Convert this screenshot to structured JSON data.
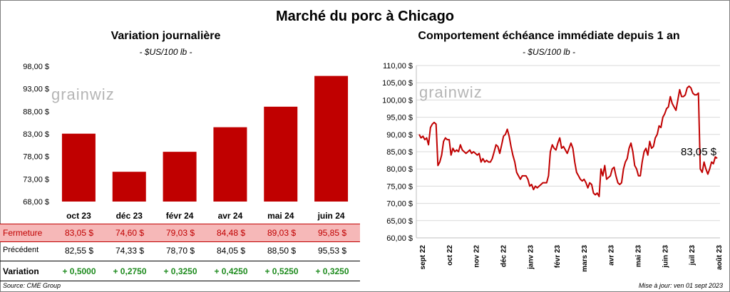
{
  "header": {
    "title": "Marché du porc à Chicago"
  },
  "left": {
    "title": "Variation  journalière",
    "unit": "- $US/100 lb -",
    "logo": "grainwiz"
  },
  "right": {
    "title": "Comportement  échéance immédiate depuis 1 an",
    "unit": "- $US/100 lb -",
    "logo": "grainwiz",
    "last_label": "83,05 $"
  },
  "table": {
    "close_label": "Fermeture",
    "close_values": [
      "83,05  $",
      "74,60  $",
      "79,03  $",
      "84,48  $",
      "89,03  $",
      "95,85  $"
    ],
    "prev_label": "Précédent",
    "prev_values": [
      "82,55  $",
      "74,33  $",
      "78,70  $",
      "84,05  $",
      "88,50  $",
      "95,53  $"
    ],
    "var_label": "Variation",
    "var_values": [
      "+ 0,5000",
      "+ 0,2750",
      "+ 0,3250",
      "+ 0,4250",
      "+ 0,5250",
      "+ 0,3250"
    ]
  },
  "footer": {
    "source": "Source: CME Group",
    "updated": "Mise à jour: ven 01 sept 2023"
  },
  "colors": {
    "bar": "#c00000",
    "line": "#c00000",
    "positive": "#1e8b1e",
    "close_row_bg": "#f6b8b8"
  },
  "chart_data": [
    {
      "type": "bar",
      "title": "Variation  journalière",
      "categories": [
        "oct 23",
        "déc 23",
        "févr 24",
        "avr 24",
        "mai 24",
        "juin 24"
      ],
      "values": [
        83.05,
        74.6,
        79.03,
        84.48,
        89.03,
        95.85
      ],
      "ylim": [
        68,
        98
      ],
      "yticks": [
        68,
        73,
        78,
        83,
        88,
        93,
        98
      ],
      "ytick_labels": [
        "68,00 $",
        "73,00 $",
        "78,00 $",
        "83,00 $",
        "88,00 $",
        "93,00 $",
        "98,00 $"
      ],
      "grid": false
    },
    {
      "type": "line",
      "title": "Comportement  échéance immédiate depuis 1 an",
      "ylim": [
        60,
        110
      ],
      "yticks": [
        60,
        65,
        70,
        75,
        80,
        85,
        90,
        95,
        100,
        105,
        110
      ],
      "ytick_labels": [
        "60,00 $",
        "65,00 $",
        "70,00 $",
        "75,00 $",
        "80,00 $",
        "85,00 $",
        "90,00 $",
        "95,00 $",
        "100,00 $",
        "105,00 $",
        "110,00 $"
      ],
      "xtick_labels": [
        "sept 22",
        "oct 22",
        "nov 22",
        "déc 22",
        "janv 23",
        "févr 23",
        "mars 23",
        "avr 23",
        "mai 23",
        "juin 23",
        "juil 23",
        "août 23"
      ],
      "grid": true,
      "values": [
        90,
        89,
        89.5,
        88.5,
        89,
        87,
        92,
        93,
        93.5,
        93,
        81,
        82,
        84,
        88,
        89,
        88.5,
        88.5,
        84,
        86,
        85,
        85.5,
        85,
        87,
        85.5,
        85,
        84.5,
        85,
        85.5,
        84.5,
        85,
        84.5,
        84,
        84.5,
        82,
        83,
        82,
        82.5,
        82,
        82,
        83,
        85,
        87,
        86.5,
        84.5,
        87,
        89.5,
        90,
        91.5,
        89.5,
        86.5,
        84,
        82,
        79,
        78,
        77,
        78,
        78,
        78,
        77,
        75,
        75.5,
        74,
        75,
        74.5,
        75,
        75.5,
        76,
        76,
        76,
        78,
        85,
        87,
        86,
        85.5,
        87.5,
        89,
        86,
        86.5,
        85.5,
        84.5,
        86,
        87.5,
        86,
        82,
        79,
        78,
        77,
        76.5,
        77,
        76,
        74.5,
        76,
        75.5,
        73,
        72.5,
        73,
        72,
        80,
        78,
        81,
        77,
        77.5,
        78,
        80,
        80.5,
        78,
        76,
        75.5,
        76,
        80,
        82,
        83,
        86,
        87.5,
        85,
        81,
        80,
        78,
        78,
        82,
        85,
        86,
        84,
        88,
        86,
        86.5,
        89,
        90,
        92.5,
        92,
        95,
        96,
        97.5,
        98,
        101,
        99,
        98,
        97,
        100,
        103,
        101,
        101,
        101.5,
        103.5,
        104,
        103.5,
        102,
        101.5,
        101.5,
        102,
        80,
        79,
        82,
        80,
        78.5,
        80,
        82,
        81.5,
        83.5,
        83.05
      ]
    }
  ]
}
